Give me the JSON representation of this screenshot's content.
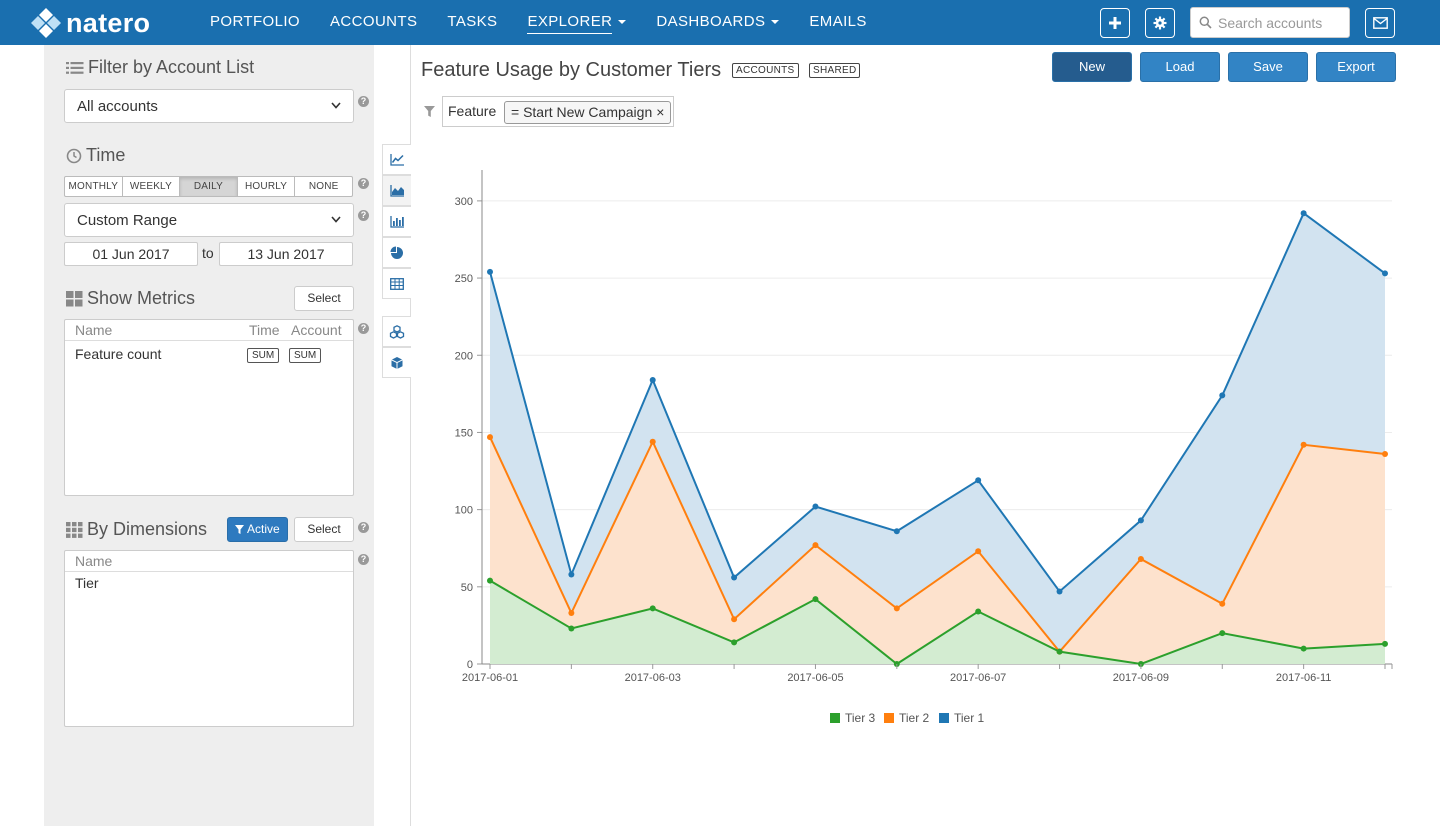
{
  "brand": {
    "name": "natero"
  },
  "nav": {
    "items": [
      {
        "label": "PORTFOLIO",
        "dropdown": false,
        "active": false
      },
      {
        "label": "ACCOUNTS",
        "dropdown": false,
        "active": false
      },
      {
        "label": "TASKS",
        "dropdown": false,
        "active": false
      },
      {
        "label": "EXPLORER",
        "dropdown": true,
        "active": true
      },
      {
        "label": "DASHBOARDS",
        "dropdown": true,
        "active": false
      },
      {
        "label": "EMAILS",
        "dropdown": false,
        "active": false
      }
    ],
    "search_placeholder": "Search accounts",
    "icons": [
      "plus-icon",
      "gear-icon",
      "search-icon",
      "mail-icon"
    ]
  },
  "sidebar": {
    "account_list": {
      "title": "Filter by Account List",
      "selected": "All accounts"
    },
    "time": {
      "title": "Time",
      "granularity": [
        "MONTHLY",
        "WEEKLY",
        "DAILY",
        "HOURLY",
        "NONE"
      ],
      "selected_granularity": "DAILY",
      "range": "Custom Range",
      "from": "01 Jun 2017",
      "to_label": "to",
      "to": "13 Jun 2017"
    },
    "metrics": {
      "title": "Show Metrics",
      "select_label": "Select",
      "columns": [
        "Name",
        "Time",
        "Account"
      ],
      "rows": [
        {
          "name": "Feature count",
          "time": "SUM",
          "account": "SUM"
        }
      ]
    },
    "dimensions": {
      "title": "By Dimensions",
      "active_label": "Active",
      "select_label": "Select",
      "columns": [
        "Name"
      ],
      "rows": [
        "Tier"
      ]
    }
  },
  "main": {
    "title": "Feature Usage by Customer Tiers",
    "tags": [
      "ACCOUNTS",
      "SHARED"
    ],
    "actions": {
      "new": "New",
      "load": "Load",
      "save": "Save",
      "export": "Export"
    },
    "filter": {
      "field": "Feature",
      "value": "= Start New Campaign",
      "remove": "×"
    },
    "chart_tools": [
      "line-chart-icon",
      "area-chart-icon",
      "bar-chart-icon",
      "pie-chart-icon",
      "table-icon",
      "cubes-icon",
      "cube-icon"
    ],
    "active_chart_tool": "area-chart-icon"
  },
  "chart_data": {
    "type": "area",
    "stacked": false,
    "x": [
      "2017-06-01",
      "2017-06-02",
      "2017-06-03",
      "2017-06-04",
      "2017-06-05",
      "2017-06-06",
      "2017-06-07",
      "2017-06-08",
      "2017-06-09",
      "2017-06-10",
      "2017-06-11",
      "2017-06-12"
    ],
    "x_tick_labels": [
      "2017-06-01",
      "2017-06-03",
      "2017-06-05",
      "2017-06-07",
      "2017-06-09",
      "2017-06-11"
    ],
    "y_ticks": [
      0,
      50,
      100,
      150,
      200,
      250,
      300
    ],
    "ylim": [
      0,
      320
    ],
    "grid": true,
    "legend_position": "bottom",
    "series": [
      {
        "name": "Tier 3",
        "color": "#2ca02c",
        "fill": "#d3ecd1",
        "values": [
          54,
          23,
          36,
          14,
          42,
          0,
          34,
          8,
          0,
          20,
          10,
          13
        ]
      },
      {
        "name": "Tier 2",
        "color": "#ff7f0e",
        "fill": "#fde2cd",
        "values": [
          147,
          33,
          144,
          29,
          77,
          36,
          73,
          8,
          68,
          39,
          142,
          136
        ]
      },
      {
        "name": "Tier 1",
        "color": "#1f77b4",
        "fill": "#d2e3f0",
        "values": [
          254,
          58,
          184,
          56,
          102,
          86,
          119,
          47,
          93,
          174,
          292,
          253
        ]
      }
    ]
  }
}
